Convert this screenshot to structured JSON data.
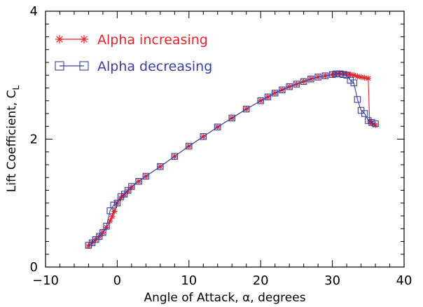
{
  "chart_data": {
    "type": "line",
    "xlabel": "Angle of Attack, α, degrees",
    "ylabel": "Lift Coefficient, C",
    "ylabel_subscript": "L",
    "xlim": [
      -10,
      40
    ],
    "ylim": [
      0,
      4
    ],
    "x_ticks": [
      -10,
      0,
      10,
      20,
      30,
      40
    ],
    "x_tick_labels": [
      "−10",
      "0",
      "10",
      "20",
      "30",
      "40"
    ],
    "y_ticks": [
      0,
      2,
      4
    ],
    "y_tick_labels": [
      "0",
      "2",
      "4"
    ],
    "legend_position": "top-left",
    "series": [
      {
        "name": "Alpha increasing",
        "color": "#e8232a",
        "marker": "asterisk",
        "x": [
          -4.0,
          -3.5,
          -3.0,
          -2.5,
          -2.0,
          -1.5,
          -1.0,
          -0.7,
          -0.4,
          0.0,
          0.5,
          1.0,
          1.5,
          2.0,
          3.0,
          4.0,
          6.0,
          8.0,
          10.0,
          12.0,
          14.0,
          16.0,
          18.0,
          20.0,
          21.0,
          22.0,
          23.0,
          24.0,
          25.0,
          26.0,
          27.0,
          28.0,
          29.0,
          30.0,
          30.5,
          31.0,
          31.5,
          32.0,
          32.5,
          33.0,
          33.5,
          34.0,
          34.5,
          35.0,
          35.2,
          35.5,
          36.0
        ],
        "y": [
          0.33,
          0.38,
          0.43,
          0.48,
          0.54,
          0.62,
          0.72,
          0.79,
          0.87,
          1.0,
          1.08,
          1.13,
          1.19,
          1.25,
          1.34,
          1.42,
          1.57,
          1.73,
          1.89,
          2.04,
          2.19,
          2.33,
          2.47,
          2.6,
          2.66,
          2.72,
          2.77,
          2.82,
          2.86,
          2.9,
          2.94,
          2.97,
          2.99,
          3.01,
          3.02,
          3.03,
          3.03,
          3.02,
          3.01,
          3.0,
          2.98,
          2.97,
          2.96,
          2.95,
          2.28,
          2.25,
          2.22
        ]
      },
      {
        "name": "Alpha decreasing",
        "color": "#3a3f9c",
        "marker": "square",
        "x": [
          36.0,
          35.5,
          35.0,
          34.5,
          34.0,
          33.5,
          33.0,
          32.5,
          32.0,
          31.5,
          31.0,
          30.5,
          30.0,
          29.0,
          28.0,
          27.0,
          26.0,
          25.0,
          24.0,
          23.0,
          22.0,
          21.0,
          20.0,
          18.0,
          16.0,
          14.0,
          12.0,
          10.0,
          8.0,
          6.0,
          4.0,
          3.0,
          2.0,
          1.5,
          1.0,
          0.5,
          0.0,
          -0.5,
          -1.0,
          -1.5,
          -2.0,
          -2.5,
          -3.0,
          -3.5,
          -4.0
        ],
        "y": [
          2.24,
          2.26,
          2.29,
          2.4,
          2.45,
          2.62,
          2.88,
          2.92,
          3.0,
          3.01,
          3.02,
          3.02,
          3.01,
          2.99,
          2.97,
          2.94,
          2.9,
          2.86,
          2.82,
          2.77,
          2.72,
          2.66,
          2.6,
          2.47,
          2.33,
          2.19,
          2.04,
          1.89,
          1.73,
          1.57,
          1.42,
          1.34,
          1.26,
          1.2,
          1.14,
          1.1,
          1.0,
          0.97,
          0.88,
          0.64,
          0.54,
          0.48,
          0.43,
          0.38,
          0.34
        ]
      }
    ]
  }
}
